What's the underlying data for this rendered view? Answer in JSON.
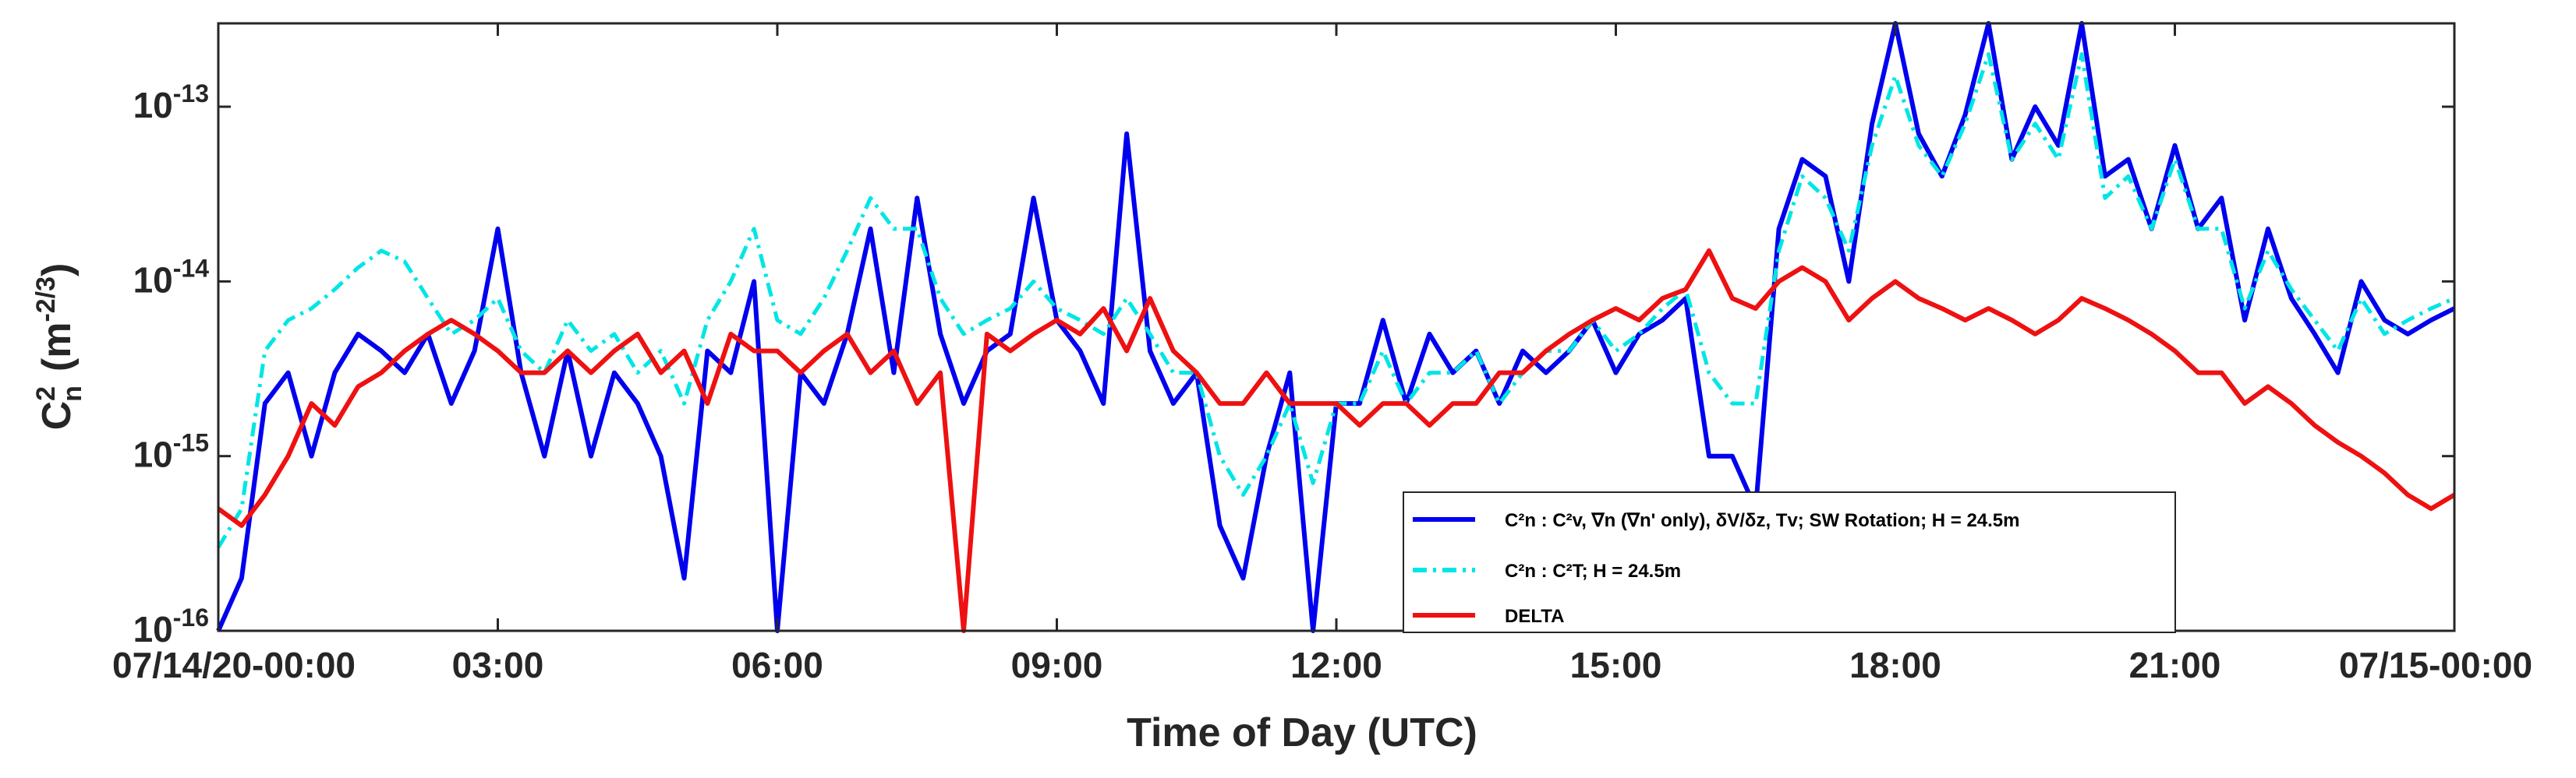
{
  "chart_data": {
    "type": "line",
    "xlabel": "Time of Day (UTC)",
    "ylabel": {
      "base": "C",
      "sup": "2",
      "sub": "n",
      "unit_prefix": "(m",
      "unit_sup": "-2/3",
      "unit_suffix": ")"
    },
    "x_tick_labels": [
      "07/14/20-00:00",
      "03:00",
      "06:00",
      "09:00",
      "12:00",
      "15:00",
      "18:00",
      "21:00",
      "07/15-00:00"
    ],
    "x_tick_hours": [
      0,
      3,
      6,
      9,
      12,
      15,
      18,
      21,
      24
    ],
    "xlim_hours": [
      0,
      24
    ],
    "y_scale": "log",
    "ylim": [
      1e-16,
      3e-13
    ],
    "y_ticks": [
      {
        "value": 1e-16,
        "base": "10",
        "exp": "-16"
      },
      {
        "value": 1e-15,
        "base": "10",
        "exp": "-15"
      },
      {
        "value": 1e-14,
        "base": "10",
        "exp": "-14"
      },
      {
        "value": 1e-13,
        "base": "10",
        "exp": "-13"
      }
    ],
    "grid": false,
    "legend_location": "bottom-right",
    "series": [
      {
        "legend": "C²n : C²v, ∇n (∇n' only), δV/δz, Tv; SW Rotation; H = 24.5m",
        "color": "#0000ee",
        "line_style": "solid",
        "x_hours": [
          0,
          0.25,
          0.5,
          0.75,
          1,
          1.25,
          1.5,
          1.75,
          2,
          2.25,
          2.5,
          2.75,
          3,
          3.25,
          3.5,
          3.75,
          4,
          4.25,
          4.5,
          4.75,
          5,
          5.25,
          5.5,
          5.75,
          6,
          6.25,
          6.5,
          6.75,
          7,
          7.25,
          7.5,
          7.75,
          8,
          8.25,
          8.5,
          8.75,
          9,
          9.25,
          9.5,
          9.75,
          10,
          10.25,
          10.5,
          10.75,
          11,
          11.25,
          11.5,
          11.75,
          12,
          12.25,
          12.5,
          12.75,
          13,
          13.25,
          13.5,
          13.75,
          14,
          14.25,
          14.5,
          14.75,
          15,
          15.25,
          15.5,
          15.75,
          16,
          16.25,
          16.5,
          16.75,
          17,
          17.25,
          17.5,
          17.75,
          18,
          18.25,
          18.5,
          18.75,
          19,
          19.25,
          19.5,
          19.75,
          20,
          20.25,
          20.5,
          20.75,
          21,
          21.25,
          21.5,
          21.75,
          22,
          22.25,
          22.5,
          22.75,
          23,
          23.25,
          23.5,
          23.75,
          24
        ],
        "values": [
          1e-16,
          2e-16,
          2e-15,
          3e-15,
          1e-15,
          3e-15,
          5e-15,
          4e-15,
          3e-15,
          5e-15,
          2e-15,
          4e-15,
          2e-14,
          3e-15,
          1e-15,
          4e-15,
          1e-15,
          3e-15,
          2e-15,
          1e-15,
          2e-16,
          4e-15,
          3e-15,
          1e-14,
          1e-16,
          3e-15,
          2e-15,
          5e-15,
          2e-14,
          3e-15,
          3e-14,
          5e-15,
          2e-15,
          4e-15,
          5e-15,
          3e-14,
          6e-15,
          4e-15,
          2e-15,
          7e-14,
          4e-15,
          2e-15,
          3e-15,
          4e-16,
          2e-16,
          1e-15,
          3e-15,
          1e-16,
          2e-15,
          2e-15,
          6e-15,
          2e-15,
          5e-15,
          3e-15,
          4e-15,
          2e-15,
          4e-15,
          3e-15,
          4e-15,
          6e-15,
          3e-15,
          5e-15,
          6e-15,
          8e-15,
          1e-15,
          1e-15,
          5e-16,
          2e-14,
          5e-14,
          4e-14,
          1e-14,
          8e-14,
          3e-13,
          7e-14,
          4e-14,
          9e-14,
          3e-13,
          5e-14,
          1e-13,
          6e-14,
          3e-13,
          4e-14,
          5e-14,
          2e-14,
          6e-14,
          2e-14,
          3e-14,
          6e-15,
          2e-14,
          8e-15,
          5e-15,
          3e-15,
          1e-14,
          6e-15,
          5e-15,
          6e-15,
          7e-15
        ]
      },
      {
        "legend": "C²n : C²T; H = 24.5m",
        "color": "#00e5e5",
        "line_style": "dash-dot",
        "x_hours": [
          0,
          0.25,
          0.5,
          0.75,
          1,
          1.25,
          1.5,
          1.75,
          2,
          2.25,
          2.5,
          2.75,
          3,
          3.25,
          3.5,
          3.75,
          4,
          4.25,
          4.5,
          4.75,
          5,
          5.25,
          5.5,
          5.75,
          6,
          6.25,
          6.5,
          6.75,
          7,
          7.25,
          7.5,
          7.75,
          8,
          8.25,
          8.5,
          8.75,
          9,
          9.25,
          9.5,
          9.75,
          10,
          10.25,
          10.5,
          10.75,
          11,
          11.25,
          11.5,
          11.75,
          12,
          12.25,
          12.5,
          12.75,
          13,
          13.25,
          13.5,
          13.75,
          14,
          14.25,
          14.5,
          14.75,
          15,
          15.25,
          15.5,
          15.75,
          16,
          16.25,
          16.5,
          16.75,
          17,
          17.25,
          17.5,
          17.75,
          18,
          18.25,
          18.5,
          18.75,
          19,
          19.25,
          19.5,
          19.75,
          20,
          20.25,
          20.5,
          20.75,
          21,
          21.25,
          21.5,
          21.75,
          22,
          22.25,
          22.5,
          22.75,
          23,
          23.25,
          23.5,
          23.75,
          24
        ],
        "values": [
          3e-16,
          5e-16,
          4e-15,
          6e-15,
          7e-15,
          9e-15,
          1.2e-14,
          1.5e-14,
          1.3e-14,
          8e-15,
          5e-15,
          6e-15,
          8e-15,
          4e-15,
          3e-15,
          6e-15,
          4e-15,
          5e-15,
          3e-15,
          4e-15,
          2e-15,
          6e-15,
          1e-14,
          2e-14,
          6e-15,
          5e-15,
          8e-15,
          1.5e-14,
          3e-14,
          2e-14,
          2e-14,
          8e-15,
          5e-15,
          6e-15,
          7e-15,
          1e-14,
          7e-15,
          6e-15,
          5e-15,
          8e-15,
          5e-15,
          3e-15,
          3e-15,
          1e-15,
          6e-16,
          1e-15,
          2e-15,
          7e-16,
          2e-15,
          2e-15,
          4e-15,
          2e-15,
          3e-15,
          3e-15,
          4e-15,
          2e-15,
          3e-15,
          4e-15,
          4e-15,
          6e-15,
          4e-15,
          5e-15,
          7e-15,
          9e-15,
          3e-15,
          2e-15,
          2e-15,
          1.5e-14,
          4e-14,
          3e-14,
          1.5e-14,
          6e-14,
          1.5e-13,
          6e-14,
          4e-14,
          8e-14,
          2e-13,
          5e-14,
          8e-14,
          5e-14,
          2e-13,
          3e-14,
          4e-14,
          2e-14,
          5e-14,
          2e-14,
          2e-14,
          7e-15,
          1.5e-14,
          9e-15,
          6e-15,
          4e-15,
          8e-15,
          5e-15,
          6e-15,
          7e-15,
          8e-15
        ]
      },
      {
        "legend": "DELTA",
        "color": "#ee1111",
        "line_style": "solid",
        "x_hours": [
          0,
          0.25,
          0.5,
          0.75,
          1,
          1.25,
          1.5,
          1.75,
          2,
          2.25,
          2.5,
          2.75,
          3,
          3.25,
          3.5,
          3.75,
          4,
          4.25,
          4.5,
          4.75,
          5,
          5.25,
          5.5,
          5.75,
          6,
          6.25,
          6.5,
          6.75,
          7,
          7.25,
          7.5,
          7.75,
          8,
          8.25,
          8.5,
          8.75,
          9,
          9.25,
          9.5,
          9.75,
          10,
          10.25,
          10.5,
          10.75,
          11,
          11.25,
          11.5,
          11.75,
          12,
          12.25,
          12.5,
          12.75,
          13,
          13.25,
          13.5,
          13.75,
          14,
          14.25,
          14.5,
          14.75,
          15,
          15.25,
          15.5,
          15.75,
          16,
          16.25,
          16.5,
          16.75,
          17,
          17.25,
          17.5,
          17.75,
          18,
          18.25,
          18.5,
          18.75,
          19,
          19.25,
          19.5,
          19.75,
          20,
          20.25,
          20.5,
          20.75,
          21,
          21.25,
          21.5,
          21.75,
          22,
          22.25,
          22.5,
          22.75,
          23,
          23.25,
          23.5,
          23.75,
          24
        ],
        "values": [
          5e-16,
          4e-16,
          6e-16,
          1e-15,
          2e-15,
          1.5e-15,
          2.5e-15,
          3e-15,
          4e-15,
          5e-15,
          6e-15,
          5e-15,
          4e-15,
          3e-15,
          3e-15,
          4e-15,
          3e-15,
          4e-15,
          5e-15,
          3e-15,
          4e-15,
          2e-15,
          5e-15,
          4e-15,
          4e-15,
          3e-15,
          4e-15,
          5e-15,
          3e-15,
          4e-15,
          2e-15,
          3e-15,
          1e-16,
          5e-15,
          4e-15,
          5e-15,
          6e-15,
          5e-15,
          7e-15,
          4e-15,
          8e-15,
          4e-15,
          3e-15,
          2e-15,
          2e-15,
          3e-15,
          2e-15,
          2e-15,
          2e-15,
          1.5e-15,
          2e-15,
          2e-15,
          1.5e-15,
          2e-15,
          2e-15,
          3e-15,
          3e-15,
          4e-15,
          5e-15,
          6e-15,
          7e-15,
          6e-15,
          8e-15,
          9e-15,
          1.5e-14,
          8e-15,
          7e-15,
          1e-14,
          1.2e-14,
          1e-14,
          6e-15,
          8e-15,
          1e-14,
          8e-15,
          7e-15,
          6e-15,
          7e-15,
          6e-15,
          5e-15,
          6e-15,
          8e-15,
          7e-15,
          6e-15,
          5e-15,
          4e-15,
          3e-15,
          3e-15,
          2e-15,
          2.5e-15,
          2e-15,
          1.5e-15,
          1.2e-15,
          1e-15,
          8e-16,
          6e-16,
          5e-16,
          6e-16
        ]
      }
    ]
  }
}
